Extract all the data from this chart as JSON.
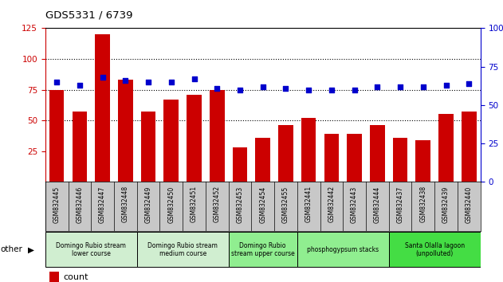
{
  "title": "GDS5331 / 6739",
  "categories": [
    "GSM832445",
    "GSM832446",
    "GSM832447",
    "GSM832448",
    "GSM832449",
    "GSM832450",
    "GSM832451",
    "GSM832452",
    "GSM832453",
    "GSM832454",
    "GSM832455",
    "GSM832441",
    "GSM832442",
    "GSM832443",
    "GSM832444",
    "GSM832437",
    "GSM832438",
    "GSM832439",
    "GSM832440"
  ],
  "counts": [
    75,
    57,
    120,
    83,
    57,
    67,
    71,
    75,
    28,
    36,
    46,
    52,
    39,
    39,
    46,
    36,
    34,
    55,
    57
  ],
  "percentiles": [
    65,
    63,
    68,
    66,
    65,
    65,
    67,
    61,
    60,
    62,
    61,
    60,
    60,
    60,
    62,
    62,
    62,
    63,
    64
  ],
  "groups": [
    {
      "label": "Domingo Rubio stream\nlower course",
      "start": 0,
      "end": 4,
      "color": "#d0eed0"
    },
    {
      "label": "Domingo Rubio stream\nmedium course",
      "start": 4,
      "end": 8,
      "color": "#d0eed0"
    },
    {
      "label": "Domingo Rubio\nstream upper course",
      "start": 8,
      "end": 11,
      "color": "#90ee90"
    },
    {
      "label": "phosphogypsum stacks",
      "start": 11,
      "end": 15,
      "color": "#90ee90"
    },
    {
      "label": "Santa Olalla lagoon\n(unpolluted)",
      "start": 15,
      "end": 19,
      "color": "#44dd44"
    }
  ],
  "bar_color": "#cc0000",
  "dot_color": "#0000cc",
  "ylim_left": [
    0,
    125
  ],
  "ylim_right": [
    0,
    100
  ],
  "yticks_left": [
    25,
    50,
    75,
    100,
    125
  ],
  "yticks_right": [
    0,
    25,
    50,
    75,
    100
  ],
  "background_color": "#ffffff",
  "tick_area_color": "#c8c8c8"
}
